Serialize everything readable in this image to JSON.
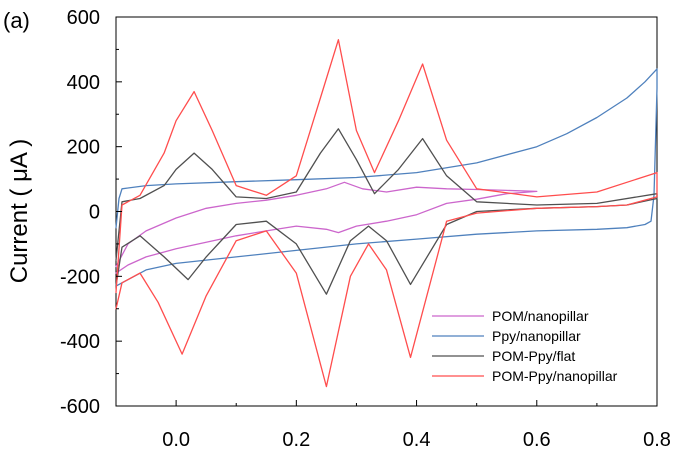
{
  "chart_data": {
    "type": "line",
    "panel_label": "(a)",
    "title": "",
    "xlabel": "",
    "ylabel": "Current ( μA )",
    "xlim": [
      -0.1,
      0.8
    ],
    "ylim": [
      -600,
      600
    ],
    "x_ticks": [
      0.0,
      0.2,
      0.4,
      0.6,
      0.8
    ],
    "x_tick_labels": [
      "0.0",
      "0.2",
      "0.4",
      "0.6",
      "0.8"
    ],
    "y_ticks": [
      600,
      400,
      200,
      0,
      -200,
      -400,
      -600
    ],
    "y_tick_labels": [
      "600",
      "400",
      "200",
      "0",
      "-200",
      "-400",
      "-600"
    ],
    "grid": false,
    "legend_position": "bottom-right",
    "series": [
      {
        "name": "POM/nanopillar",
        "color": "#cc66cc",
        "x": [
          -0.1,
          -0.08,
          -0.05,
          0.0,
          0.05,
          0.1,
          0.15,
          0.2,
          0.25,
          0.28,
          0.31,
          0.35,
          0.4,
          0.45,
          0.5,
          0.55,
          0.6,
          0.55,
          0.5,
          0.45,
          0.4,
          0.35,
          0.3,
          0.27,
          0.25,
          0.2,
          0.15,
          0.1,
          0.05,
          0.0,
          -0.05,
          -0.08,
          -0.1
        ],
        "y": [
          -170,
          -100,
          -60,
          -20,
          10,
          25,
          35,
          50,
          70,
          90,
          70,
          60,
          75,
          70,
          68,
          65,
          62,
          55,
          38,
          25,
          -10,
          -30,
          -45,
          -65,
          -55,
          -45,
          -60,
          -75,
          -95,
          -115,
          -140,
          -165,
          -190
        ]
      },
      {
        "name": "Ppy/nanopillar",
        "color": "#4f81bd",
        "x": [
          -0.1,
          -0.095,
          -0.09,
          -0.05,
          0.0,
          0.1,
          0.2,
          0.3,
          0.4,
          0.5,
          0.6,
          0.65,
          0.7,
          0.75,
          0.78,
          0.8,
          0.8,
          0.795,
          0.79,
          0.78,
          0.75,
          0.7,
          0.6,
          0.5,
          0.4,
          0.3,
          0.2,
          0.1,
          0.0,
          -0.05,
          -0.1
        ],
        "y": [
          -50,
          40,
          70,
          80,
          85,
          92,
          98,
          105,
          120,
          150,
          200,
          240,
          290,
          350,
          400,
          440,
          380,
          50,
          -30,
          -40,
          -50,
          -55,
          -60,
          -70,
          -85,
          -100,
          -120,
          -140,
          -160,
          -180,
          -230
        ]
      },
      {
        "name": "POM-Ppy/flat",
        "color": "#505050",
        "x": [
          -0.1,
          -0.09,
          -0.06,
          -0.02,
          0.0,
          0.03,
          0.06,
          0.1,
          0.15,
          0.2,
          0.24,
          0.27,
          0.3,
          0.33,
          0.37,
          0.41,
          0.45,
          0.5,
          0.6,
          0.7,
          0.8,
          0.8,
          0.75,
          0.7,
          0.6,
          0.5,
          0.45,
          0.39,
          0.35,
          0.32,
          0.29,
          0.25,
          0.2,
          0.15,
          0.1,
          0.05,
          0.02,
          -0.02,
          -0.06,
          -0.09,
          -0.1
        ],
        "y": [
          -150,
          30,
          40,
          80,
          130,
          180,
          130,
          45,
          40,
          60,
          180,
          255,
          160,
          55,
          130,
          225,
          110,
          30,
          20,
          25,
          55,
          40,
          20,
          15,
          10,
          0,
          -40,
          -225,
          -90,
          -45,
          -90,
          -255,
          -100,
          -30,
          -40,
          -140,
          -210,
          -140,
          -75,
          -110,
          -230
        ]
      },
      {
        "name": "POM-Ppy/nanopillar",
        "color": "#ff4d4d",
        "x": [
          -0.1,
          -0.09,
          -0.06,
          -0.02,
          0.0,
          0.03,
          0.06,
          0.1,
          0.15,
          0.2,
          0.24,
          0.27,
          0.3,
          0.33,
          0.37,
          0.41,
          0.45,
          0.5,
          0.6,
          0.7,
          0.8,
          0.8,
          0.75,
          0.7,
          0.6,
          0.5,
          0.45,
          0.39,
          0.35,
          0.32,
          0.29,
          0.25,
          0.2,
          0.15,
          0.1,
          0.05,
          0.01,
          -0.03,
          -0.06,
          -0.09,
          -0.1
        ],
        "y": [
          -250,
          20,
          50,
          180,
          280,
          370,
          250,
          80,
          50,
          110,
          350,
          530,
          250,
          120,
          280,
          455,
          220,
          70,
          45,
          60,
          120,
          45,
          20,
          15,
          10,
          -5,
          -30,
          -450,
          -180,
          -100,
          -200,
          -540,
          -190,
          -60,
          -90,
          -260,
          -440,
          -280,
          -190,
          -220,
          -300
        ]
      }
    ]
  }
}
